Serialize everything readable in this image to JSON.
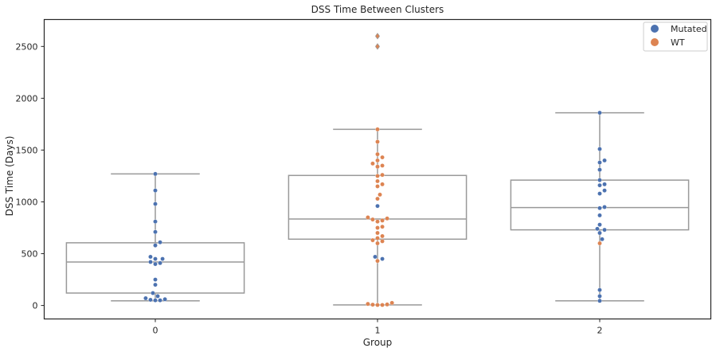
{
  "chart_data": {
    "type": "box+swarm",
    "title": "DSS Time Between Clusters",
    "xlabel": "Group",
    "ylabel": "DSS Time (Days)",
    "categories": [
      "0",
      "1",
      "2"
    ],
    "yticks": [
      0,
      500,
      1000,
      1500,
      2000,
      2500
    ],
    "ylim": [
      -130,
      2760
    ],
    "grid": false,
    "legend": {
      "placement": "top-right",
      "entries": [
        {
          "name": "Mutated",
          "color": "#4c72b0"
        },
        {
          "name": "WT",
          "color": "#dd8452"
        }
      ]
    },
    "boxes": [
      {
        "category": "0",
        "whisker_low": 45,
        "q1": 120,
        "median": 420,
        "q3": 605,
        "whisker_high": 1270
      },
      {
        "category": "1",
        "whisker_low": 5,
        "q1": 640,
        "median": 835,
        "q3": 1255,
        "whisker_high": 1700
      },
      {
        "category": "2",
        "whisker_low": 45,
        "q1": 730,
        "median": 945,
        "q3": 1210,
        "whisker_high": 1860
      }
    ],
    "outliers": [
      {
        "category": "1",
        "values": [
          2500,
          2600
        ]
      }
    ],
    "series": [
      {
        "name": "Mutated",
        "color": "#4c72b0",
        "points": [
          {
            "category": "0",
            "values": [
              1270,
              1110,
              980,
              810,
              710,
              610,
              580,
              470,
              450,
              450,
              420,
              410,
              400,
              250,
              200,
              120,
              90,
              70,
              60,
              55,
              50,
              50
            ]
          },
          {
            "category": "1",
            "values": [
              960,
              470,
              450
            ]
          },
          {
            "category": "2",
            "values": [
              1860,
              1510,
              1400,
              1380,
              1310,
              1210,
              1170,
              1160,
              1110,
              1080,
              950,
              940,
              870,
              780,
              740,
              730,
              700,
              640,
              150,
              90,
              45
            ]
          }
        ]
      },
      {
        "name": "WT",
        "color": "#dd8452",
        "points": [
          {
            "category": "1",
            "values": [
              2600,
              2500,
              1700,
              1580,
              1460,
              1430,
              1400,
              1370,
              1350,
              1340,
              1260,
              1250,
              1200,
              1170,
              1150,
              1070,
              1030,
              850,
              840,
              830,
              820,
              810,
              760,
              750,
              700,
              670,
              650,
              630,
              620,
              600,
              430,
              25,
              15,
              10,
              8,
              5,
              5
            ]
          },
          {
            "category": "2",
            "values": [
              600
            ]
          }
        ]
      }
    ]
  }
}
